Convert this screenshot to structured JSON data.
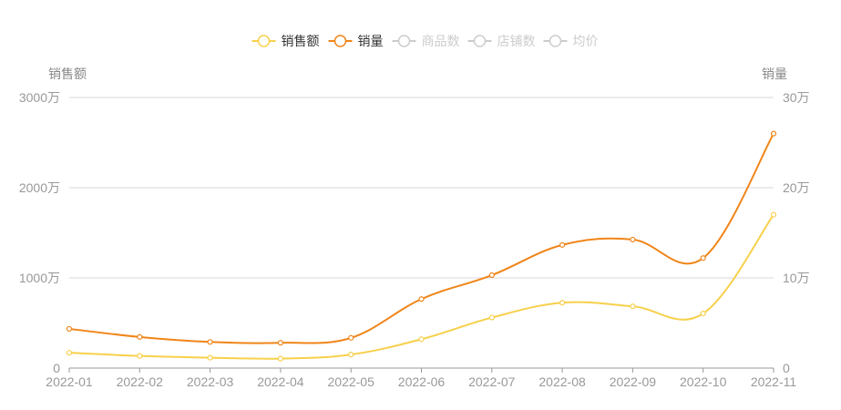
{
  "chart_data": {
    "type": "line",
    "categories": [
      "2022-01",
      "2022-02",
      "2022-03",
      "2022-04",
      "2022-05",
      "2022-06",
      "2022-07",
      "2022-08",
      "2022-09",
      "2022-10",
      "2022-11"
    ],
    "y_left": {
      "label": "销售额",
      "range": [
        0,
        30000000
      ],
      "ticks": [
        {
          "value": 0,
          "label": "0"
        },
        {
          "value": 10000000,
          "label": "1000万"
        },
        {
          "value": 20000000,
          "label": "2000万"
        },
        {
          "value": 30000000,
          "label": "3000万"
        }
      ]
    },
    "y_right": {
      "label": "销量",
      "range": [
        0,
        300000
      ],
      "ticks": [
        {
          "value": 0,
          "label": "0"
        },
        {
          "value": 100000,
          "label": "10万"
        },
        {
          "value": 200000,
          "label": "20万"
        },
        {
          "value": 300000,
          "label": "30万"
        }
      ]
    },
    "series": [
      {
        "name": "销售额",
        "axis": "left",
        "color": "#f7d04b",
        "visible": true,
        "values": [
          1700000,
          1350000,
          1150000,
          1050000,
          1500000,
          3200000,
          5600000,
          7250000,
          6850000,
          6050000,
          17000000
        ]
      },
      {
        "name": "销量",
        "axis": "right",
        "color": "#f08519",
        "visible": true,
        "values": [
          43500,
          34500,
          29000,
          28000,
          33500,
          76500,
          103000,
          136500,
          142500,
          122000,
          260000
        ]
      },
      {
        "name": "商品数",
        "visible": false,
        "color": "#cccccc"
      },
      {
        "name": "店铺数",
        "visible": false,
        "color": "#cccccc"
      },
      {
        "name": "均价",
        "visible": false,
        "color": "#cccccc"
      }
    ],
    "grid": true,
    "legend_position": "top-center"
  }
}
